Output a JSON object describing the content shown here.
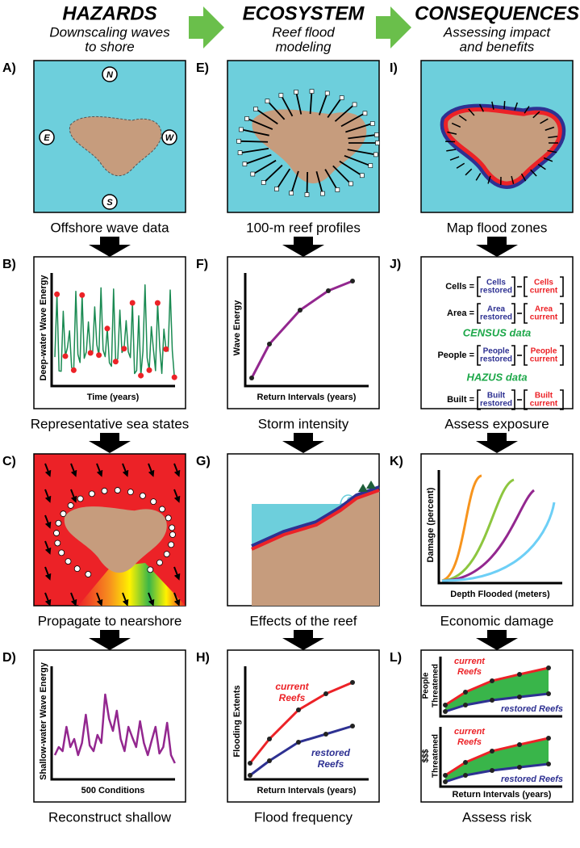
{
  "columns": [
    {
      "title": "HAZARDS",
      "subtitle": [
        "Downscaling waves",
        "to shore"
      ],
      "panels": [
        {
          "letter": "A)",
          "caption": "Offshore wave data",
          "compass": [
            "N",
            "E",
            "W",
            "S"
          ]
        },
        {
          "letter": "B)",
          "caption": "Representative sea states",
          "y_label": "Deep-water Wave Energy",
          "x_label": "Time (years)"
        },
        {
          "letter": "C)",
          "caption": "Propagate to nearshore"
        },
        {
          "letter": "D)",
          "caption": "Reconstruct shallow",
          "y_label": "Shallow-water Wave Energy",
          "x_label": "500 Conditions"
        }
      ]
    },
    {
      "title": "ECOSYSTEM",
      "subtitle": [
        "Reef flood",
        "modeling"
      ],
      "panels": [
        {
          "letter": "E)",
          "caption": "100-m reef profiles"
        },
        {
          "letter": "F)",
          "caption": "Storm intensity",
          "y_label": "Wave Energy",
          "x_label": "Return Intervals (years)"
        },
        {
          "letter": "G)",
          "caption": "Effects of the reef"
        },
        {
          "letter": "H)",
          "caption": "Flood frequency",
          "y_label": "Flooding Extents",
          "x_label": "Return Intervals (years)",
          "current_label": [
            "current",
            "Reefs"
          ],
          "restored_label": [
            "restored",
            "Reefs"
          ]
        }
      ]
    },
    {
      "title": "CONSEQUENCES",
      "subtitle": [
        "Assessing impact",
        "and benefits"
      ],
      "panels": [
        {
          "letter": "I)",
          "caption": "Map flood zones"
        },
        {
          "letter": "J)",
          "caption": "Assess exposure",
          "rows": [
            {
              "label": "Cells =",
              "restored": [
                "Cells",
                "restored"
              ],
              "current": [
                "Cells",
                "current"
              ]
            },
            {
              "label": "Area =",
              "restored": [
                "Area",
                "restored"
              ],
              "current": [
                "Area",
                "current"
              ]
            },
            {
              "heading": "CENSUS data"
            },
            {
              "label": "People =",
              "restored": [
                "People",
                "restored"
              ],
              "current": [
                "People",
                "current"
              ]
            },
            {
              "heading": "HAZUS data"
            },
            {
              "label": "Built =",
              "restored": [
                "Built",
                "restored"
              ],
              "current": [
                "Built",
                "current"
              ]
            }
          ]
        },
        {
          "letter": "K)",
          "caption": "Economic damage",
          "y_label": "Damage (percent)",
          "x_label": "Depth Flooded (meters)"
        },
        {
          "letter": "L)",
          "caption": "Assess risk",
          "x_label": "Return Intervals (years)",
          "charts": [
            {
              "y_label": [
                "People",
                "Threatened"
              ],
              "current_label": [
                "current",
                "Reefs"
              ],
              "restored_label": "restored Reefs"
            },
            {
              "y_label": [
                "$$$",
                "Threatened"
              ],
              "current_label": [
                "current",
                "Reefs"
              ],
              "restored_label": "restored Reefs"
            }
          ]
        }
      ]
    }
  ]
}
